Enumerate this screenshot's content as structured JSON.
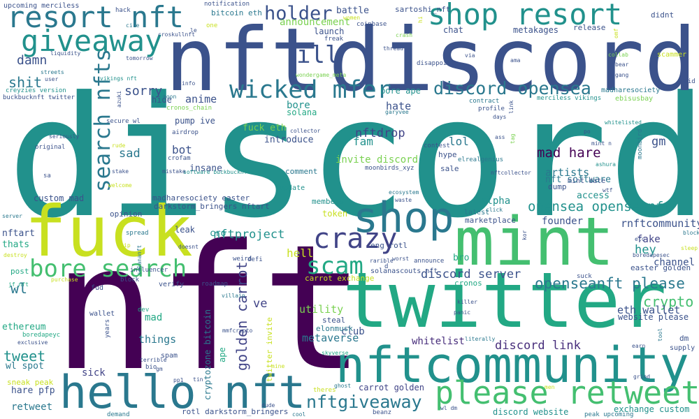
{
  "title": "",
  "words": [
    {
      "text": "discord",
      "color": "#21918c"
    },
    {
      "text": "nft",
      "color": "#440154"
    },
    {
      "text": "nft",
      "color": "#3b528b"
    },
    {
      "text": "discord",
      "color": "#3b528b"
    },
    {
      "text": "twitter",
      "color": "#22a884"
    },
    {
      "text": "mint",
      "color": "#44bf70"
    },
    {
      "text": "fuck",
      "color": "#c8e020"
    },
    {
      "text": "nftcommunity",
      "color": "#21918c"
    },
    {
      "text": "hello nft",
      "color": "#2a788e"
    },
    {
      "text": "shop",
      "color": "#2a788e"
    },
    {
      "text": "resort nft",
      "color": "#2a788e"
    },
    {
      "text": "shop resort",
      "color": "#21918c"
    },
    {
      "text": "please retweet",
      "color": "#44bf70"
    },
    {
      "text": "giveaway",
      "color": "#21918c"
    },
    {
      "text": "crazy",
      "color": "#414487"
    },
    {
      "text": "wicked mfer",
      "color": "#2a788e"
    },
    {
      "text": "bore search",
      "color": "#44bf70"
    },
    {
      "text": "scam",
      "color": "#22a884"
    },
    {
      "text": "nftgiveaway",
      "color": "#2a788e"
    },
    {
      "text": "discord opensea",
      "color": "#2a788e"
    },
    {
      "text": "holder",
      "color": "#3b528b"
    },
    {
      "text": "ill",
      "color": "#3b528b"
    },
    {
      "text": "search nfts",
      "color": "#2a788e"
    },
    {
      "text": "golden carrot",
      "color": "#414487"
    },
    {
      "text": "opensea openseanft",
      "color": "#21918c"
    },
    {
      "text": "openseanft please",
      "color": "#2a788e"
    },
    {
      "text": "mad hare",
      "color": "#440154"
    },
    {
      "text": "nftproject",
      "color": "#21918c"
    },
    {
      "text": "discord server",
      "color": "#3b528b"
    },
    {
      "text": "discord link",
      "color": "#472d7b"
    },
    {
      "text": "crypto",
      "color": "#44bf70"
    },
    {
      "text": "tweet",
      "color": "#21918c"
    },
    {
      "text": "damn",
      "color": "#3b528b"
    },
    {
      "text": "shit",
      "color": "#2a788e"
    },
    {
      "text": "sorry",
      "color": "#3b528b"
    },
    {
      "text": "anime",
      "color": "#3b528b"
    },
    {
      "text": "hate",
      "color": "#3b528b"
    },
    {
      "text": "bore",
      "color": "#21918c"
    },
    {
      "text": "bore ape",
      "color": "#21918c"
    },
    {
      "text": "nftdrop",
      "color": "#414487"
    },
    {
      "text": "fuck eth",
      "color": "#7ad151"
    },
    {
      "text": "introduce",
      "color": "#3b528b"
    },
    {
      "text": "fam",
      "color": "#21918c"
    },
    {
      "text": "invite discord",
      "color": "#7ad151"
    },
    {
      "text": "lol",
      "color": "#2a788e"
    },
    {
      "text": "bot",
      "color": "#3b528b"
    },
    {
      "text": "sad",
      "color": "#2a788e"
    },
    {
      "text": "gm",
      "color": "#3b528b"
    },
    {
      "text": "artists",
      "color": "#2a788e"
    },
    {
      "text": "nft software",
      "color": "#2a788e"
    },
    {
      "text": "rnftcommunity",
      "color": "#3b528b"
    },
    {
      "text": "founder",
      "color": "#3b528b"
    },
    {
      "text": "hey",
      "color": "#21918c"
    },
    {
      "text": "fake",
      "color": "#414487"
    },
    {
      "text": "hell",
      "color": "#c8e020"
    },
    {
      "text": "alpha",
      "color": "#21918c"
    },
    {
      "text": "bro",
      "color": "#22a884"
    },
    {
      "text": "wl",
      "color": "#2a788e"
    },
    {
      "text": "ve",
      "color": "#414487"
    },
    {
      "text": "utility",
      "color": "#7ad151"
    },
    {
      "text": "metaverse",
      "color": "#2a788e"
    },
    {
      "text": "club",
      "color": "#3b528b"
    },
    {
      "text": "whitelist",
      "color": "#472d7b"
    },
    {
      "text": "eth wallet",
      "color": "#3b528b"
    },
    {
      "text": "things",
      "color": "#2a788e"
    },
    {
      "text": "mad",
      "color": "#22a884"
    },
    {
      "text": "sick",
      "color": "#414487"
    },
    {
      "text": "retweet",
      "color": "#2a788e"
    },
    {
      "text": "hare pfp",
      "color": "#3b528b"
    },
    {
      "text": "wl spot",
      "color": "#2a788e"
    },
    {
      "text": "ethereum",
      "color": "#22a884"
    },
    {
      "text": "thats",
      "color": "#22a884"
    },
    {
      "text": "nftart",
      "color": "#3b528b"
    },
    {
      "text": "custom mad",
      "color": "#3b528b"
    },
    {
      "text": "madharesociety easter",
      "color": "#3b528b"
    },
    {
      "text": "darkstorm_bringers nftart",
      "color": "#3b528b"
    },
    {
      "text": "cryptozone bitcoin",
      "color": "#2a788e"
    },
    {
      "text": "twitter invite",
      "color": "#c8e020"
    },
    {
      "text": "carrot golden",
      "color": "#414487"
    },
    {
      "text": "exchange custom",
      "color": "#21918c"
    },
    {
      "text": "discord website",
      "color": "#21918c"
    },
    {
      "text": "rotl darkstorm_bringers",
      "color": "#3b528b"
    },
    {
      "text": "eng rotl",
      "color": "#3b528b"
    },
    {
      "text": "carrot exchange",
      "color": "#c8e020"
    },
    {
      "text": "solanascouts nft",
      "color": "#3b528b"
    },
    {
      "text": "elonmusk",
      "color": "#2a788e"
    },
    {
      "text": "steal",
      "color": "#3b528b"
    },
    {
      "text": "token",
      "color": "#c8e020"
    },
    {
      "text": "members",
      "color": "#21918c"
    },
    {
      "text": "access",
      "color": "#21918c"
    },
    {
      "text": "channel",
      "color": "#3b528b"
    },
    {
      "text": "easter golden",
      "color": "#3b528b"
    },
    {
      "text": "website please",
      "color": "#3b528b"
    },
    {
      "text": "dm",
      "color": "#3b528b"
    },
    {
      "text": "cronos",
      "color": "#22a884"
    },
    {
      "text": "cro",
      "color": "#21918c"
    },
    {
      "text": "leak",
      "color": "#3b528b"
    },
    {
      "text": "insane",
      "color": "#3b528b"
    },
    {
      "text": "pump ive",
      "color": "#3b528b"
    },
    {
      "text": "solana",
      "color": "#22a884"
    },
    {
      "text": "hide",
      "color": "#3b528b"
    },
    {
      "text": "announcement",
      "color": "#7ad151"
    },
    {
      "text": "launch",
      "color": "#3b528b"
    },
    {
      "text": "bitcoin eth",
      "color": "#2a788e"
    },
    {
      "text": "battle",
      "color": "#3b528b"
    },
    {
      "text": "sartoshi_nft",
      "color": "#3b528b"
    },
    {
      "text": "chat",
      "color": "#3b528b"
    },
    {
      "text": "metakages",
      "color": "#3b528b"
    },
    {
      "text": "release",
      "color": "#3b528b"
    },
    {
      "text": "didnt",
      "color": "#3b528b"
    },
    {
      "text": "ecosystem",
      "color": "#2a788e"
    },
    {
      "text": "marketplace",
      "color": "#3b528b"
    },
    {
      "text": "mint date",
      "color": "#3b528b"
    },
    {
      "text": "dump",
      "color": "#3b528b"
    },
    {
      "text": "sale",
      "color": "#3b528b"
    },
    {
      "text": "hype",
      "color": "#3b528b"
    },
    {
      "text": "comment",
      "color": "#2a788e"
    },
    {
      "text": "update",
      "color": "#21918c"
    },
    {
      "text": "opinion",
      "color": "#3b528b"
    },
    {
      "text": "verify",
      "color": "#3b528b"
    },
    {
      "text": "fud",
      "color": "#3b528b"
    },
    {
      "text": "wallet",
      "color": "#3b528b"
    },
    {
      "text": "spam",
      "color": "#3b528b"
    },
    {
      "text": "ape",
      "color": "#22a884"
    },
    {
      "text": "sneak peak",
      "color": "#c8e020"
    },
    {
      "text": "post",
      "color": "#22a884"
    },
    {
      "text": "supply n",
      "color": "#3b528b"
    },
    {
      "text": "upcoming merciless",
      "color": "#3b528b"
    },
    {
      "text": "notification",
      "color": "#3b528b"
    },
    {
      "text": "hack",
      "color": "#3b528b"
    },
    {
      "text": "croskullnft",
      "color": "#3b528b"
    },
    {
      "text": "tomorrow",
      "color": "#3b528b"
    },
    {
      "text": "vikings nft",
      "color": "#21918c"
    },
    {
      "text": "creyzies version",
      "color": "#21918c"
    },
    {
      "text": "buckbucknft twitter",
      "color": "#3b528b"
    },
    {
      "text": "wondergame_meta",
      "color": "#7ad151"
    },
    {
      "text": "disappoint",
      "color": "#3b528b"
    },
    {
      "text": "madharesociety",
      "color": "#2a788e"
    },
    {
      "text": "merciless vikings",
      "color": "#21918c"
    },
    {
      "text": "ebisusbay",
      "color": "#7ad151"
    },
    {
      "text": "contract",
      "color": "#2a788e"
    },
    {
      "text": "profile",
      "color": "#3b528b"
    },
    {
      "text": "cronos_chain",
      "color": "#7ad151"
    },
    {
      "text": "garyvee",
      "color": "#2a788e"
    },
    {
      "text": "secure wl",
      "color": "#3b528b"
    },
    {
      "text": "airdrop",
      "color": "#3b528b"
    },
    {
      "text": "original",
      "color": "#3b528b"
    },
    {
      "text": "crofam",
      "color": "#3b528b"
    },
    {
      "text": "software buckbucknft",
      "color": "#21918c"
    },
    {
      "text": "moonbirds_xyz",
      "color": "#3b528b"
    },
    {
      "text": "elrealgenius",
      "color": "#2a788e"
    },
    {
      "text": "ashura",
      "color": "#21918c"
    },
    {
      "text": "moonbird",
      "color": "#2a788e"
    },
    {
      "text": "whitelisted",
      "color": "#21918c"
    },
    {
      "text": "collab",
      "color": "#7ad151"
    },
    {
      "text": "scammer",
      "color": "#c8e020"
    },
    {
      "text": "raid",
      "color": "#3b528b"
    },
    {
      "text": "ama",
      "color": "#3b528b"
    },
    {
      "text": "bear",
      "color": "#3b528b"
    },
    {
      "text": "via",
      "color": "#3b528b"
    },
    {
      "text": "etc",
      "color": "#3b528b"
    },
    {
      "text": "boredapesec",
      "color": "#3b528b"
    },
    {
      "text": "blockchain",
      "color": "#2a788e"
    },
    {
      "text": "sleep",
      "color": "#c8e020"
    },
    {
      "text": "suck",
      "color": "#3b528b"
    },
    {
      "text": "influencer",
      "color": "#3b528b"
    },
    {
      "text": "roadmap",
      "color": "#3b528b"
    },
    {
      "text": "villain",
      "color": "#2a788e"
    },
    {
      "text": "weird",
      "color": "#3b528b"
    },
    {
      "text": "defi",
      "color": "#3b528b"
    },
    {
      "text": "dev",
      "color": "#22a884"
    },
    {
      "text": "terrible",
      "color": "#3b528b"
    },
    {
      "text": "bio",
      "color": "#3b528b"
    },
    {
      "text": "boredapeyc",
      "color": "#22a884"
    },
    {
      "text": "exclusive",
      "color": "#3b528b"
    },
    {
      "text": "demand",
      "color": "#2a788e"
    },
    {
      "text": "cool",
      "color": "#2a788e"
    },
    {
      "text": "beanz",
      "color": "#3b528b"
    },
    {
      "text": "peak upcoming",
      "color": "#2a788e"
    },
    {
      "text": "wl dm",
      "color": "#3b528b"
    },
    {
      "text": "men",
      "color": "#c8e020"
    },
    {
      "text": "theres",
      "color": "#c8e020"
    },
    {
      "text": "ghost",
      "color": "#2a788e"
    },
    {
      "text": "skyverse",
      "color": "#22a884"
    },
    {
      "text": "literally",
      "color": "#2a788e"
    },
    {
      "text": "panic",
      "color": "#3b528b"
    },
    {
      "text": "killer",
      "color": "#3b528b"
    },
    {
      "text": "waste",
      "color": "#3b528b"
    },
    {
      "text": "announce",
      "color": "#3b528b"
    },
    {
      "text": "worst",
      "color": "#3b528b"
    },
    {
      "text": "rarible",
      "color": "#3b528b"
    },
    {
      "text": "block",
      "color": "#3b528b"
    },
    {
      "text": "jf_nft",
      "color": "#22a884"
    },
    {
      "text": "destroy",
      "color": "#c8e020"
    },
    {
      "text": "purchase",
      "color": "#c8e020"
    },
    {
      "text": "server",
      "color": "#2a788e"
    },
    {
      "text": "doesnt",
      "color": "#3b528b"
    },
    {
      "text": "solananft",
      "color": "#2a788e"
    },
    {
      "text": "spread",
      "color": "#2a788e"
    },
    {
      "text": "years",
      "color": "#3b528b"
    },
    {
      "text": "mmfcrypto",
      "color": "#3b528b"
    },
    {
      "text": "pp1",
      "color": "#3b528b"
    },
    {
      "text": "gm",
      "color": "#3b528b"
    },
    {
      "text": "earn",
      "color": "#3b528b"
    },
    {
      "text": "tool",
      "color": "#2a788e"
    },
    {
      "text": "grind",
      "color": "#3b528b"
    },
    {
      "text": "omf",
      "color": "#c8e020"
    },
    {
      "text": "gang",
      "color": "#3b528b"
    },
    {
      "text": "mint n",
      "color": "#3b528b"
    },
    {
      "text": "po",
      "color": "#3b528b"
    },
    {
      "text": "wtf",
      "color": "#3b528b"
    },
    {
      "text": "nftcollector",
      "color": "#3b528b"
    },
    {
      "text": "contest",
      "color": "#3b528b"
    },
    {
      "text": "days",
      "color": "#3b528b"
    },
    {
      "text": "ass",
      "color": "#3b528b"
    },
    {
      "text": "tag",
      "color": "#7ad151"
    },
    {
      "text": "link",
      "color": "#3b528b"
    },
    {
      "text": "click",
      "color": "#2a788e"
    },
    {
      "text": "latest",
      "color": "#2a788e"
    },
    {
      "text": "kor",
      "color": "#3b528b"
    },
    {
      "text": "moon",
      "color": "#2a788e"
    },
    {
      "text": "azuki",
      "color": "#3b528b"
    },
    {
      "text": "info",
      "color": "#3b528b"
    },
    {
      "text": "one",
      "color": "#c8e020"
    },
    {
      "text": "le",
      "color": "#3b528b"
    },
    {
      "text": "cire",
      "color": "#2a788e"
    },
    {
      "text": "women",
      "color": "#c8e020"
    },
    {
      "text": "coinbase",
      "color": "#3b528b"
    },
    {
      "text": "freak",
      "color": "#3b528b"
    },
    {
      "text": "thread",
      "color": "#3b528b"
    },
    {
      "text": "crash",
      "color": "#7ad151"
    },
    {
      "text": "hi",
      "color": "#c8e020"
    },
    {
      "text": "streets",
      "color": "#2a788e"
    },
    {
      "text": "user",
      "color": "#3b528b"
    },
    {
      "text": "liquidity",
      "color": "#3b528b"
    },
    {
      "text": "seriously",
      "color": "#3b528b"
    },
    {
      "text": "rude",
      "color": "#c8e020"
    },
    {
      "text": "stake",
      "color": "#3b528b"
    },
    {
      "text": "mistake",
      "color": "#3b528b"
    },
    {
      "text": "collector",
      "color": "#3b528b"
    },
    {
      "text": "welcome",
      "color": "#c8e020"
    },
    {
      "text": "sa",
      "color": "#3b528b"
    },
    {
      "text": "so",
      "color": "#21918c"
    },
    {
      "text": "ip",
      "color": "#c8e020"
    },
    {
      "text": "d",
      "color": "#3b528b"
    },
    {
      "text": "n",
      "color": "#3b528b"
    },
    {
      "text": "mine",
      "color": "#c8e020"
    },
    {
      "text": "tin",
      "color": "#3b528b"
    },
    {
      "text": "dude",
      "color": "#3b528b"
    },
    {
      "text": "gas",
      "color": "#c8e020"
    }
  ]
}
